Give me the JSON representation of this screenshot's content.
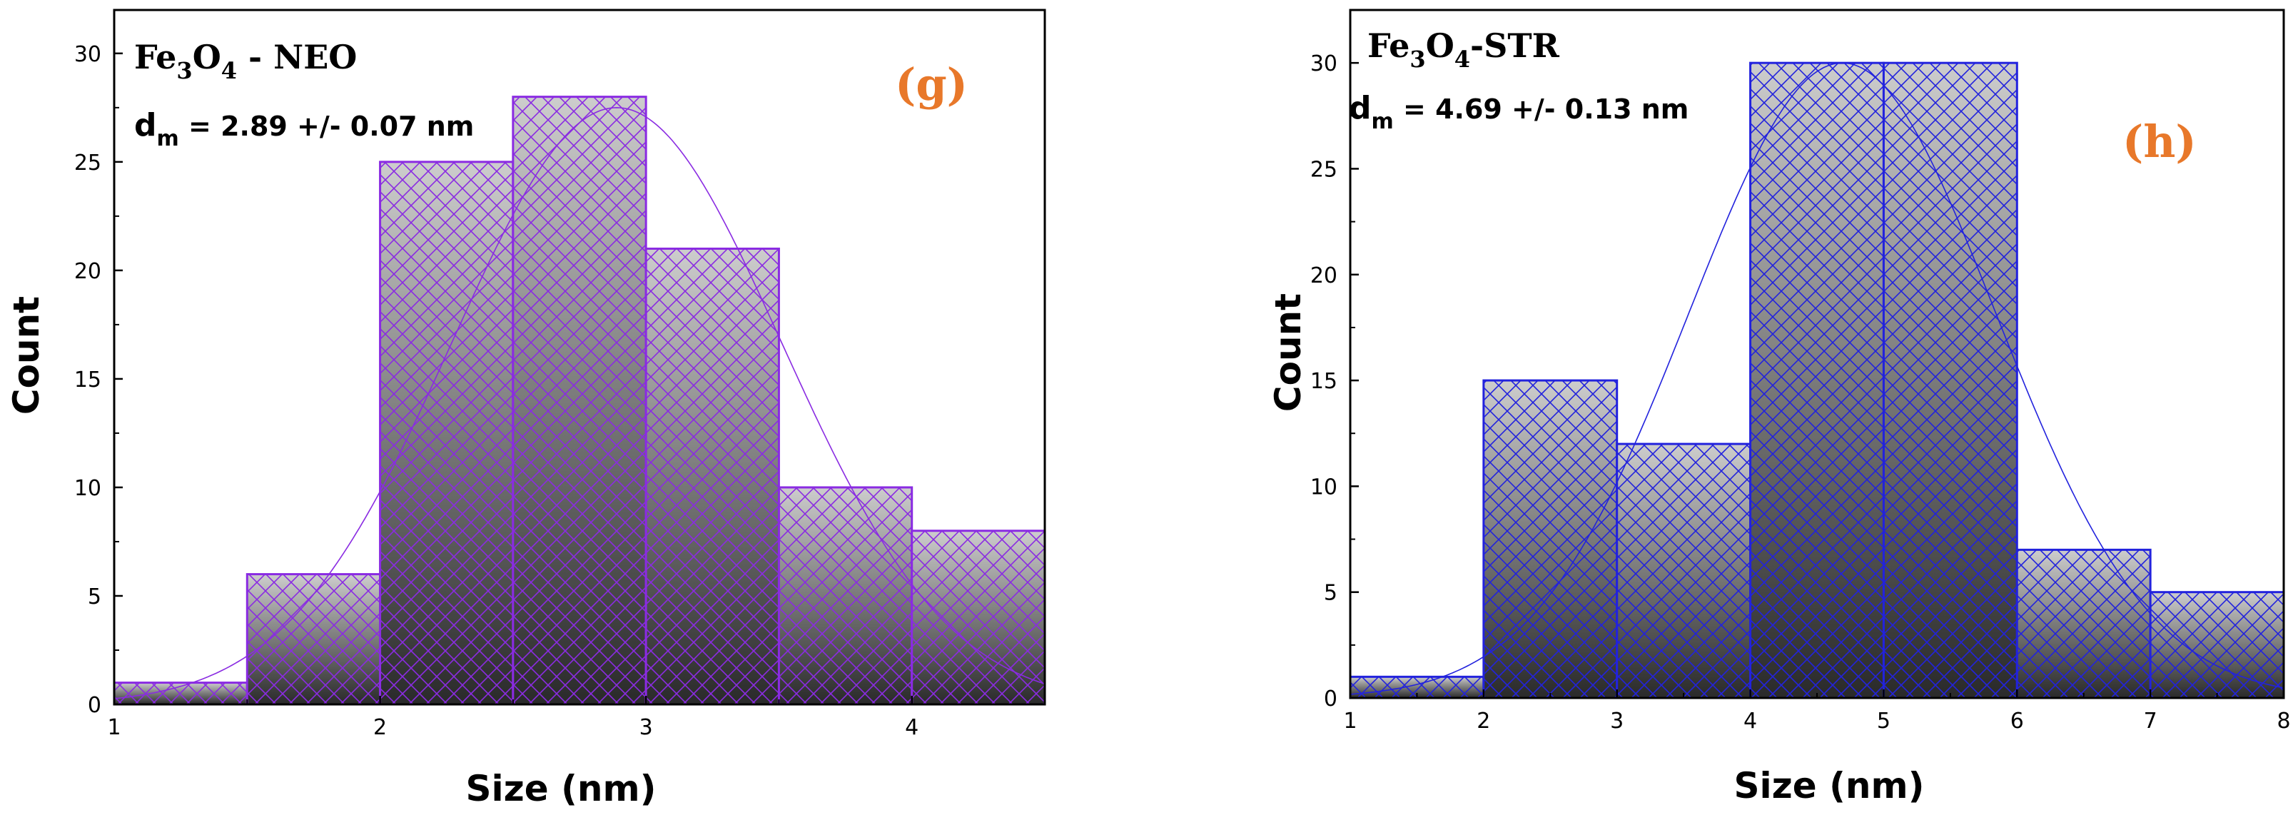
{
  "chart_data": [
    {
      "type": "bar",
      "panel_tag": "(g)",
      "formula": {
        "pre": "Fe",
        "sub1": "3",
        "mid": "O",
        "sub2": "4",
        "post": " - NEO"
      },
      "dm_label": {
        "pre": "d",
        "sub": "m",
        "post": " = 2.89 +/- 0.07 nm"
      },
      "xlabel": "Size (nm)",
      "ylabel": "Count",
      "xlim": [
        1,
        4.5
      ],
      "ylim": [
        0,
        32
      ],
      "xticks": [
        1,
        2,
        3,
        4
      ],
      "yticks": [
        0,
        5,
        10,
        15,
        20,
        25,
        30
      ],
      "bin_edges": [
        1,
        1.5,
        2,
        2.5,
        3,
        3.5,
        4,
        4.5
      ],
      "values": [
        1,
        6,
        25,
        28,
        21,
        10,
        8
      ],
      "fit": {
        "type": "gaussian",
        "center": 2.89,
        "amplitude": 27.5,
        "sigma": 0.62
      },
      "colors": {
        "accent": "#8a2be2",
        "tag": "#e8782a"
      }
    },
    {
      "type": "bar",
      "panel_tag": "(h)",
      "formula": {
        "pre": "Fe",
        "sub1": "3",
        "mid": "O",
        "sub2": "4",
        "post": "-STR"
      },
      "dm_label": {
        "pre": "d",
        "sub": "m",
        "post": " = 4.69 +/- 0.13 nm"
      },
      "xlabel": "Size (nm)",
      "ylabel": "Count",
      "xlim": [
        1,
        8
      ],
      "ylim": [
        0,
        32.5
      ],
      "xticks": [
        1,
        2,
        3,
        4,
        5,
        6,
        7,
        8
      ],
      "yticks": [
        0,
        5,
        10,
        15,
        20,
        25,
        30
      ],
      "bin_edges": [
        1,
        2,
        3,
        4,
        5,
        6,
        7,
        8
      ],
      "values": [
        1,
        15,
        12,
        30,
        30,
        7,
        5
      ],
      "fit": {
        "type": "gaussian",
        "center": 4.69,
        "amplitude": 30,
        "sigma": 1.15
      },
      "colors": {
        "accent": "#2222dd",
        "tag": "#e8782a"
      }
    }
  ]
}
